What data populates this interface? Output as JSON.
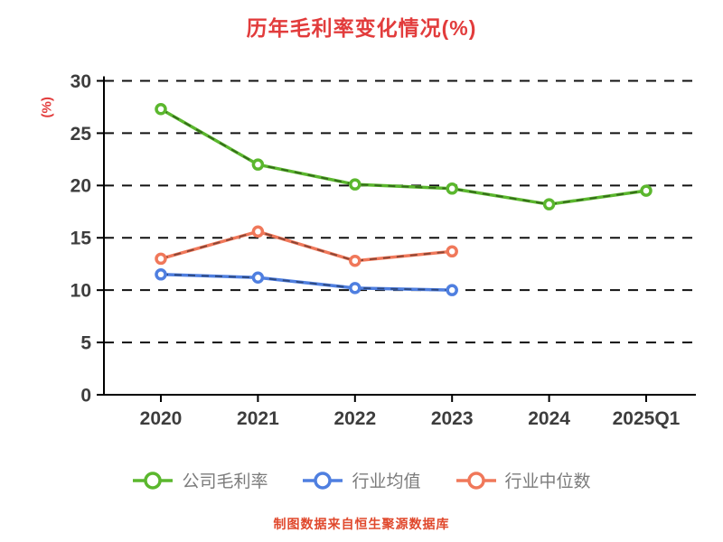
{
  "title": "历年毛利率变化情况(%)",
  "title_color": "#e23c3c",
  "ylabel": "(%)",
  "ylabel_color": "#e23c3c",
  "footer": "制图数据来自恒生聚源数据库",
  "footer_color": "#e0482c",
  "axis": {
    "tick_label_color": "#3d3d3d",
    "axis_line_color": "#000000",
    "grid_color": "#111111"
  },
  "chart_data": {
    "type": "line",
    "title": "历年毛利率变化情况(%)",
    "xlabel": "",
    "ylabel": "(%)",
    "categories": [
      "2020",
      "2021",
      "2022",
      "2023",
      "2024",
      "2025Q1"
    ],
    "series": [
      {
        "name": "公司毛利率",
        "color": "#5bb72e",
        "values": [
          27.3,
          22.0,
          20.1,
          19.7,
          18.2,
          19.5
        ]
      },
      {
        "name": "行业均值",
        "color": "#4f7fe0",
        "values": [
          11.5,
          11.2,
          10.2,
          10.0,
          null,
          null
        ]
      },
      {
        "name": "行业中位数",
        "color": "#f0785a",
        "values": [
          13.0,
          15.6,
          12.8,
          13.7,
          null,
          null
        ]
      }
    ],
    "ylim": [
      0,
      30
    ],
    "ytick_step": 5,
    "grid": "dashed-horizontal",
    "legend_position": "bottom"
  }
}
